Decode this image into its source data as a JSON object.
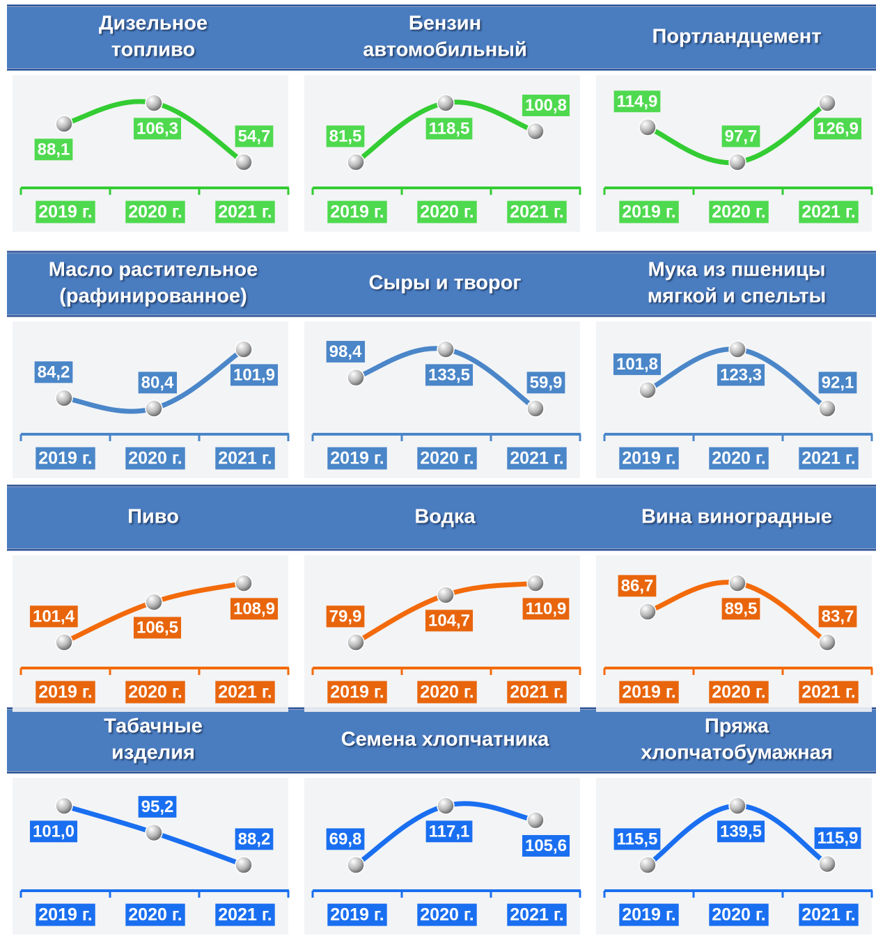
{
  "chart_data": [
    {
      "type": "line",
      "title": [
        "Дизельное",
        "топливо"
      ],
      "categories": [
        "2019 г.",
        "2020 г.",
        "2021 г."
      ],
      "values": [
        88.1,
        106.3,
        54.7
      ],
      "value_labels": [
        "88,1",
        "106,3",
        "54,7"
      ],
      "color": "#33cc33",
      "label_color": "#4fd94f"
    },
    {
      "type": "line",
      "title": [
        "Бензин",
        "автомобильный"
      ],
      "categories": [
        "2019 г.",
        "2020 г.",
        "2021 г."
      ],
      "values": [
        81.5,
        118.5,
        100.8
      ],
      "value_labels": [
        "81,5",
        "118,5",
        "100,8"
      ],
      "color": "#33cc33",
      "label_color": "#4fd94f"
    },
    {
      "type": "line",
      "title": [
        "Портландцемент"
      ],
      "categories": [
        "2019 г.",
        "2020 г.",
        "2021 г."
      ],
      "values": [
        114.9,
        97.7,
        126.9
      ],
      "value_labels": [
        "114,9",
        "97,7",
        "126,9"
      ],
      "color": "#33cc33",
      "label_color": "#4fd94f"
    },
    {
      "type": "line",
      "title": [
        "Масло растительное",
        "(рафинированное)"
      ],
      "categories": [
        "2019 г.",
        "2020 г.",
        "2021 г."
      ],
      "values": [
        84.2,
        80.4,
        101.9
      ],
      "value_labels": [
        "84,2",
        "80,4",
        "101,9"
      ],
      "color": "#4a86c8",
      "label_color": "#4a86c8"
    },
    {
      "type": "line",
      "title": [
        "Сыры и творог"
      ],
      "categories": [
        "2019 г.",
        "2020 г.",
        "2021 г."
      ],
      "values": [
        98.4,
        133.5,
        59.9
      ],
      "value_labels": [
        "98,4",
        "133,5",
        "59,9"
      ],
      "color": "#4a86c8",
      "label_color": "#4a86c8"
    },
    {
      "type": "line",
      "title": [
        "Мука из пшеницы",
        "мягкой и спельты"
      ],
      "categories": [
        "2019 г.",
        "2020 г.",
        "2021 г."
      ],
      "values": [
        101.8,
        123.3,
        92.1
      ],
      "value_labels": [
        "101,8",
        "123,3",
        "92,1"
      ],
      "color": "#4a86c8",
      "label_color": "#4a86c8"
    },
    {
      "type": "line",
      "title": [
        "Пиво"
      ],
      "categories": [
        "2019 г.",
        "2020 г.",
        "2021 г."
      ],
      "values": [
        101.4,
        106.5,
        108.9
      ],
      "value_labels": [
        "101,4",
        "106,5",
        "108,9"
      ],
      "color": "#f26a0a",
      "label_color": "#e8650c"
    },
    {
      "type": "line",
      "title": [
        "Водка"
      ],
      "categories": [
        "2019 г.",
        "2020 г.",
        "2021 г."
      ],
      "values": [
        79.9,
        104.7,
        110.9
      ],
      "value_labels": [
        "79,9",
        "104,7",
        "110,9"
      ],
      "color": "#f26a0a",
      "label_color": "#e8650c"
    },
    {
      "type": "line",
      "title": [
        "Вина виноградные"
      ],
      "categories": [
        "2019 г.",
        "2020 г.",
        "2021 г."
      ],
      "values": [
        86.7,
        89.5,
        83.7
      ],
      "value_labels": [
        "86,7",
        "89,5",
        "83,7"
      ],
      "color": "#f26a0a",
      "label_color": "#e8650c"
    },
    {
      "type": "line",
      "title": [
        "Табачные",
        "изделия"
      ],
      "categories": [
        "2019 г.",
        "2020 г.",
        "2021 г."
      ],
      "values": [
        101.0,
        95.2,
        88.2
      ],
      "value_labels": [
        "101,0",
        "95,2",
        "88,2"
      ],
      "color": "#1a6ff0",
      "label_color": "#1a6ff0"
    },
    {
      "type": "line",
      "title": [
        "Семена хлопчатника"
      ],
      "categories": [
        "2019 г.",
        "2020 г.",
        "2021 г."
      ],
      "values": [
        69.8,
        117.1,
        105.6
      ],
      "value_labels": [
        "69,8",
        "117,1",
        "105,6"
      ],
      "color": "#1a6ff0",
      "label_color": "#1a6ff0"
    },
    {
      "type": "line",
      "title": [
        "Пряжа",
        "хлопчатобумажная"
      ],
      "categories": [
        "2019 г.",
        "2020 г.",
        "2021 г."
      ],
      "values": [
        115.5,
        139.5,
        115.9
      ],
      "value_labels": [
        "115,5",
        "139,5",
        "115,9"
      ],
      "color": "#1a6ff0",
      "label_color": "#1a6ff0"
    }
  ]
}
